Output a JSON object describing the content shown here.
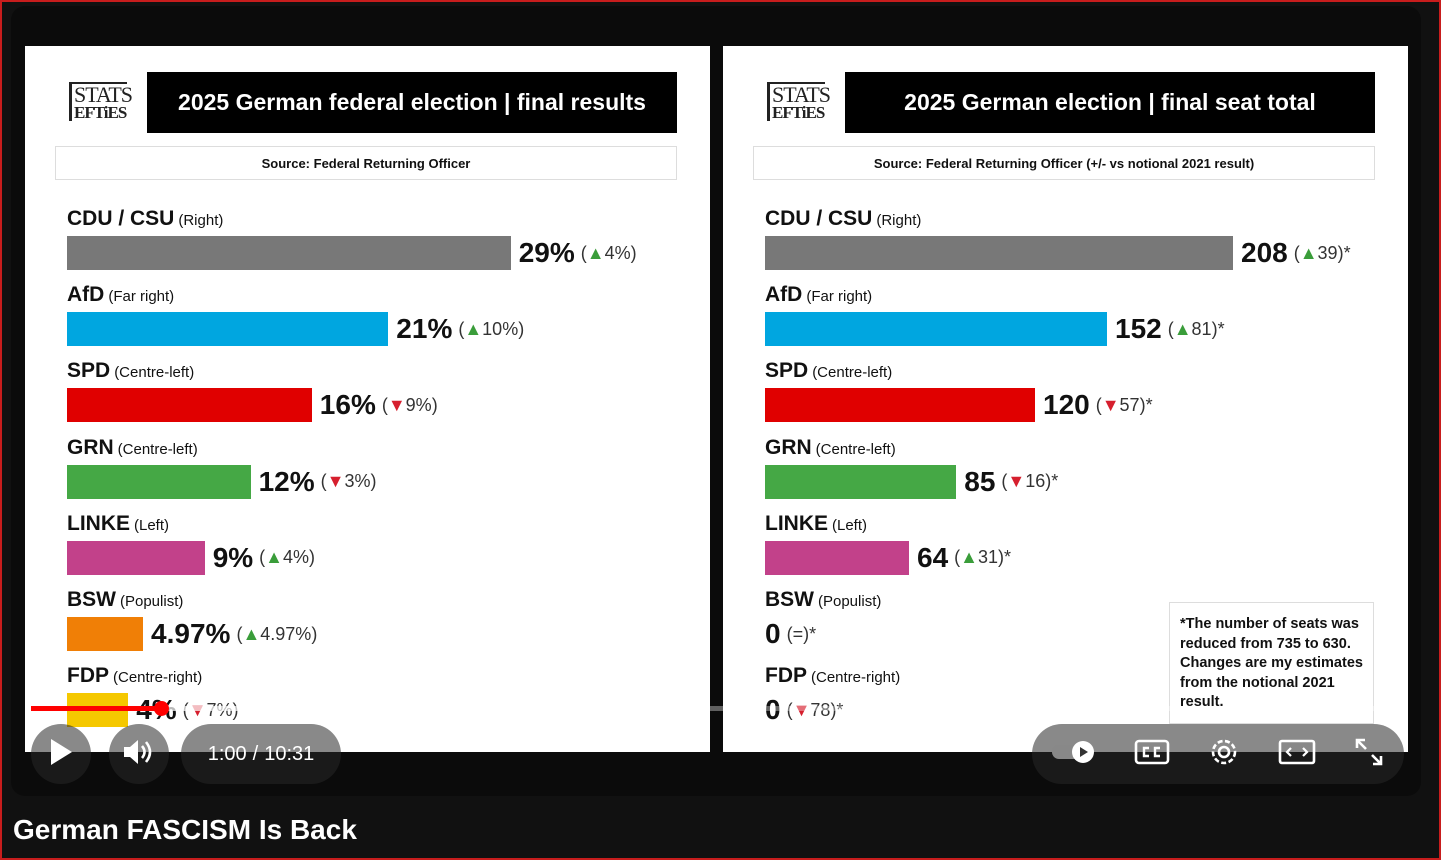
{
  "video": {
    "time_current": "1:00",
    "time_separator": "/",
    "time_total": "10:31",
    "progress": 0.095,
    "buffered": 0.235,
    "title": "German FASCISM Is Back"
  },
  "left_slide": {
    "logo_top": "STATS",
    "logo_bottom": "EFTiES",
    "title": "2025 German federal election | final results",
    "source": "Source: Federal Returning Officer",
    "parties": [
      {
        "name": "CDU / CSU",
        "lean": "(Right)",
        "value": "29%",
        "change_dir": "up",
        "change": "4%",
        "color": "#787878",
        "share": 29
      },
      {
        "name": "AfD",
        "lean": "(Far right)",
        "value": "21%",
        "change_dir": "up",
        "change": "10%",
        "color": "#00a6e0",
        "share": 21
      },
      {
        "name": "SPD",
        "lean": "(Centre-left)",
        "value": "16%",
        "change_dir": "down",
        "change": "9%",
        "color": "#e00000",
        "share": 16
      },
      {
        "name": "GRN",
        "lean": "(Centre-left)",
        "value": "12%",
        "change_dir": "down",
        "change": "3%",
        "color": "#45a845",
        "share": 12
      },
      {
        "name": "LINKE",
        "lean": "(Left)",
        "value": "9%",
        "change_dir": "up",
        "change": "4%",
        "color": "#c2418a",
        "share": 9
      },
      {
        "name": "BSW",
        "lean": "(Populist)",
        "value": "4.97%",
        "change_dir": "up",
        "change": "4.97%",
        "color": "#f07f06",
        "share": 4.97
      },
      {
        "name": "FDP",
        "lean": "(Centre-right)",
        "value": "4%",
        "change_dir": "down",
        "change": "7%",
        "color": "#f5c800",
        "share": 4
      }
    ]
  },
  "right_slide": {
    "logo_top": "STATS",
    "logo_bottom": "EFTiES",
    "title": "2025 German election | final seat total",
    "source": "Source: Federal Returning Officer (+/- vs notional 2021 result)",
    "parties": [
      {
        "name": "CDU / CSU",
        "lean": "(Right)",
        "value": "208",
        "change_dir": "up",
        "change": "39",
        "color": "#787878",
        "seats": 208
      },
      {
        "name": "AfD",
        "lean": "(Far right)",
        "value": "152",
        "change_dir": "up",
        "change": "81",
        "color": "#00a6e0",
        "seats": 152
      },
      {
        "name": "SPD",
        "lean": "(Centre-left)",
        "value": "120",
        "change_dir": "down",
        "change": "57",
        "color": "#e00000",
        "seats": 120
      },
      {
        "name": "GRN",
        "lean": "(Centre-left)",
        "value": "85",
        "change_dir": "down",
        "change": "16",
        "color": "#45a845",
        "seats": 85
      },
      {
        "name": "LINKE",
        "lean": "(Left)",
        "value": "64",
        "change_dir": "up",
        "change": "31",
        "color": "#c2418a",
        "seats": 64
      },
      {
        "name": "BSW",
        "lean": "(Populist)",
        "value": "0",
        "change_dir": "none",
        "change": "=",
        "color": "#f07f06",
        "seats": 0
      },
      {
        "name": "FDP",
        "lean": "(Centre-right)",
        "value": "0",
        "change_dir": "down",
        "change": "78",
        "color": "#f5c800",
        "seats": 0
      }
    ],
    "note": "*The number of seats was reduced from 735 to 630. Changes are my estimates from the notional 2021 result."
  },
  "icons": [
    "play-icon",
    "volume-icon",
    "autoplay-toggle-icon",
    "captions-icon",
    "settings-gear-icon",
    "theater-mode-icon",
    "fullscreen-icon"
  ]
}
